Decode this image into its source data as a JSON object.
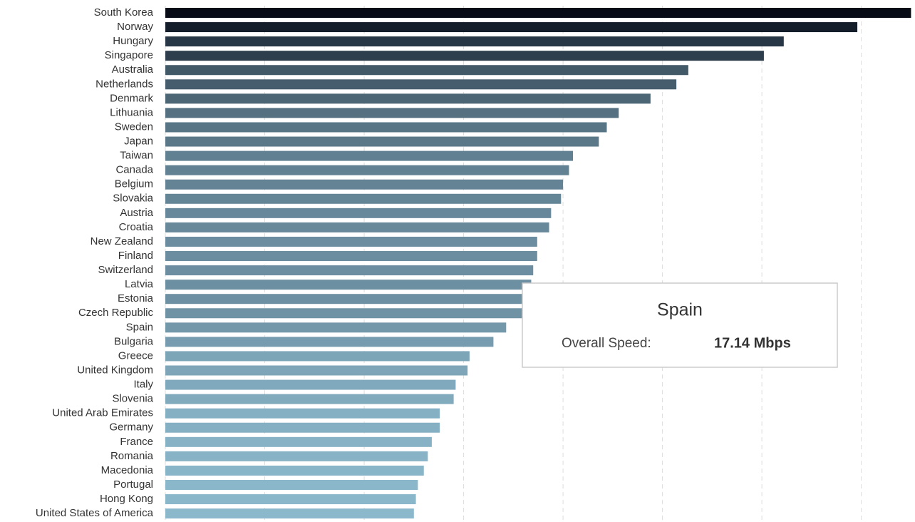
{
  "chart_data": {
    "type": "bar",
    "orientation": "horizontal",
    "categories": [
      "South Korea",
      "Norway",
      "Hungary",
      "Singapore",
      "Australia",
      "Netherlands",
      "Denmark",
      "Lithuania",
      "Sweden",
      "Japan",
      "Taiwan",
      "Canada",
      "Belgium",
      "Slovakia",
      "Austria",
      "Croatia",
      "New Zealand",
      "Finland",
      "Switzerland",
      "Latvia",
      "Estonia",
      "Czech Republic",
      "Spain",
      "Bulgaria",
      "Greece",
      "United Kingdom",
      "Italy",
      "Slovenia",
      "United Arab Emirates",
      "Germany",
      "France",
      "Romania",
      "Macedonia",
      "Portugal",
      "Hong Kong",
      "United States of America"
    ],
    "values": [
      37.5,
      34.8,
      31.1,
      30.1,
      26.3,
      25.7,
      24.4,
      22.8,
      22.2,
      21.8,
      20.5,
      20.3,
      20.0,
      19.9,
      19.4,
      19.3,
      18.7,
      18.7,
      18.5,
      18.4,
      18.2,
      18.0,
      17.14,
      16.5,
      15.3,
      15.2,
      14.6,
      14.5,
      13.8,
      13.8,
      13.4,
      13.2,
      13.0,
      12.7,
      12.6,
      12.5
    ],
    "color_scale": [
      "#8cb8cc",
      "#060b16"
    ],
    "xlim": [
      0,
      37.7
    ],
    "xticks": [
      0,
      5,
      10,
      15,
      20,
      25,
      30,
      35
    ],
    "grid": true,
    "tooltip": {
      "title": "Spain",
      "label": "Overall Speed:",
      "value_label": "17.14 Mbps"
    }
  }
}
